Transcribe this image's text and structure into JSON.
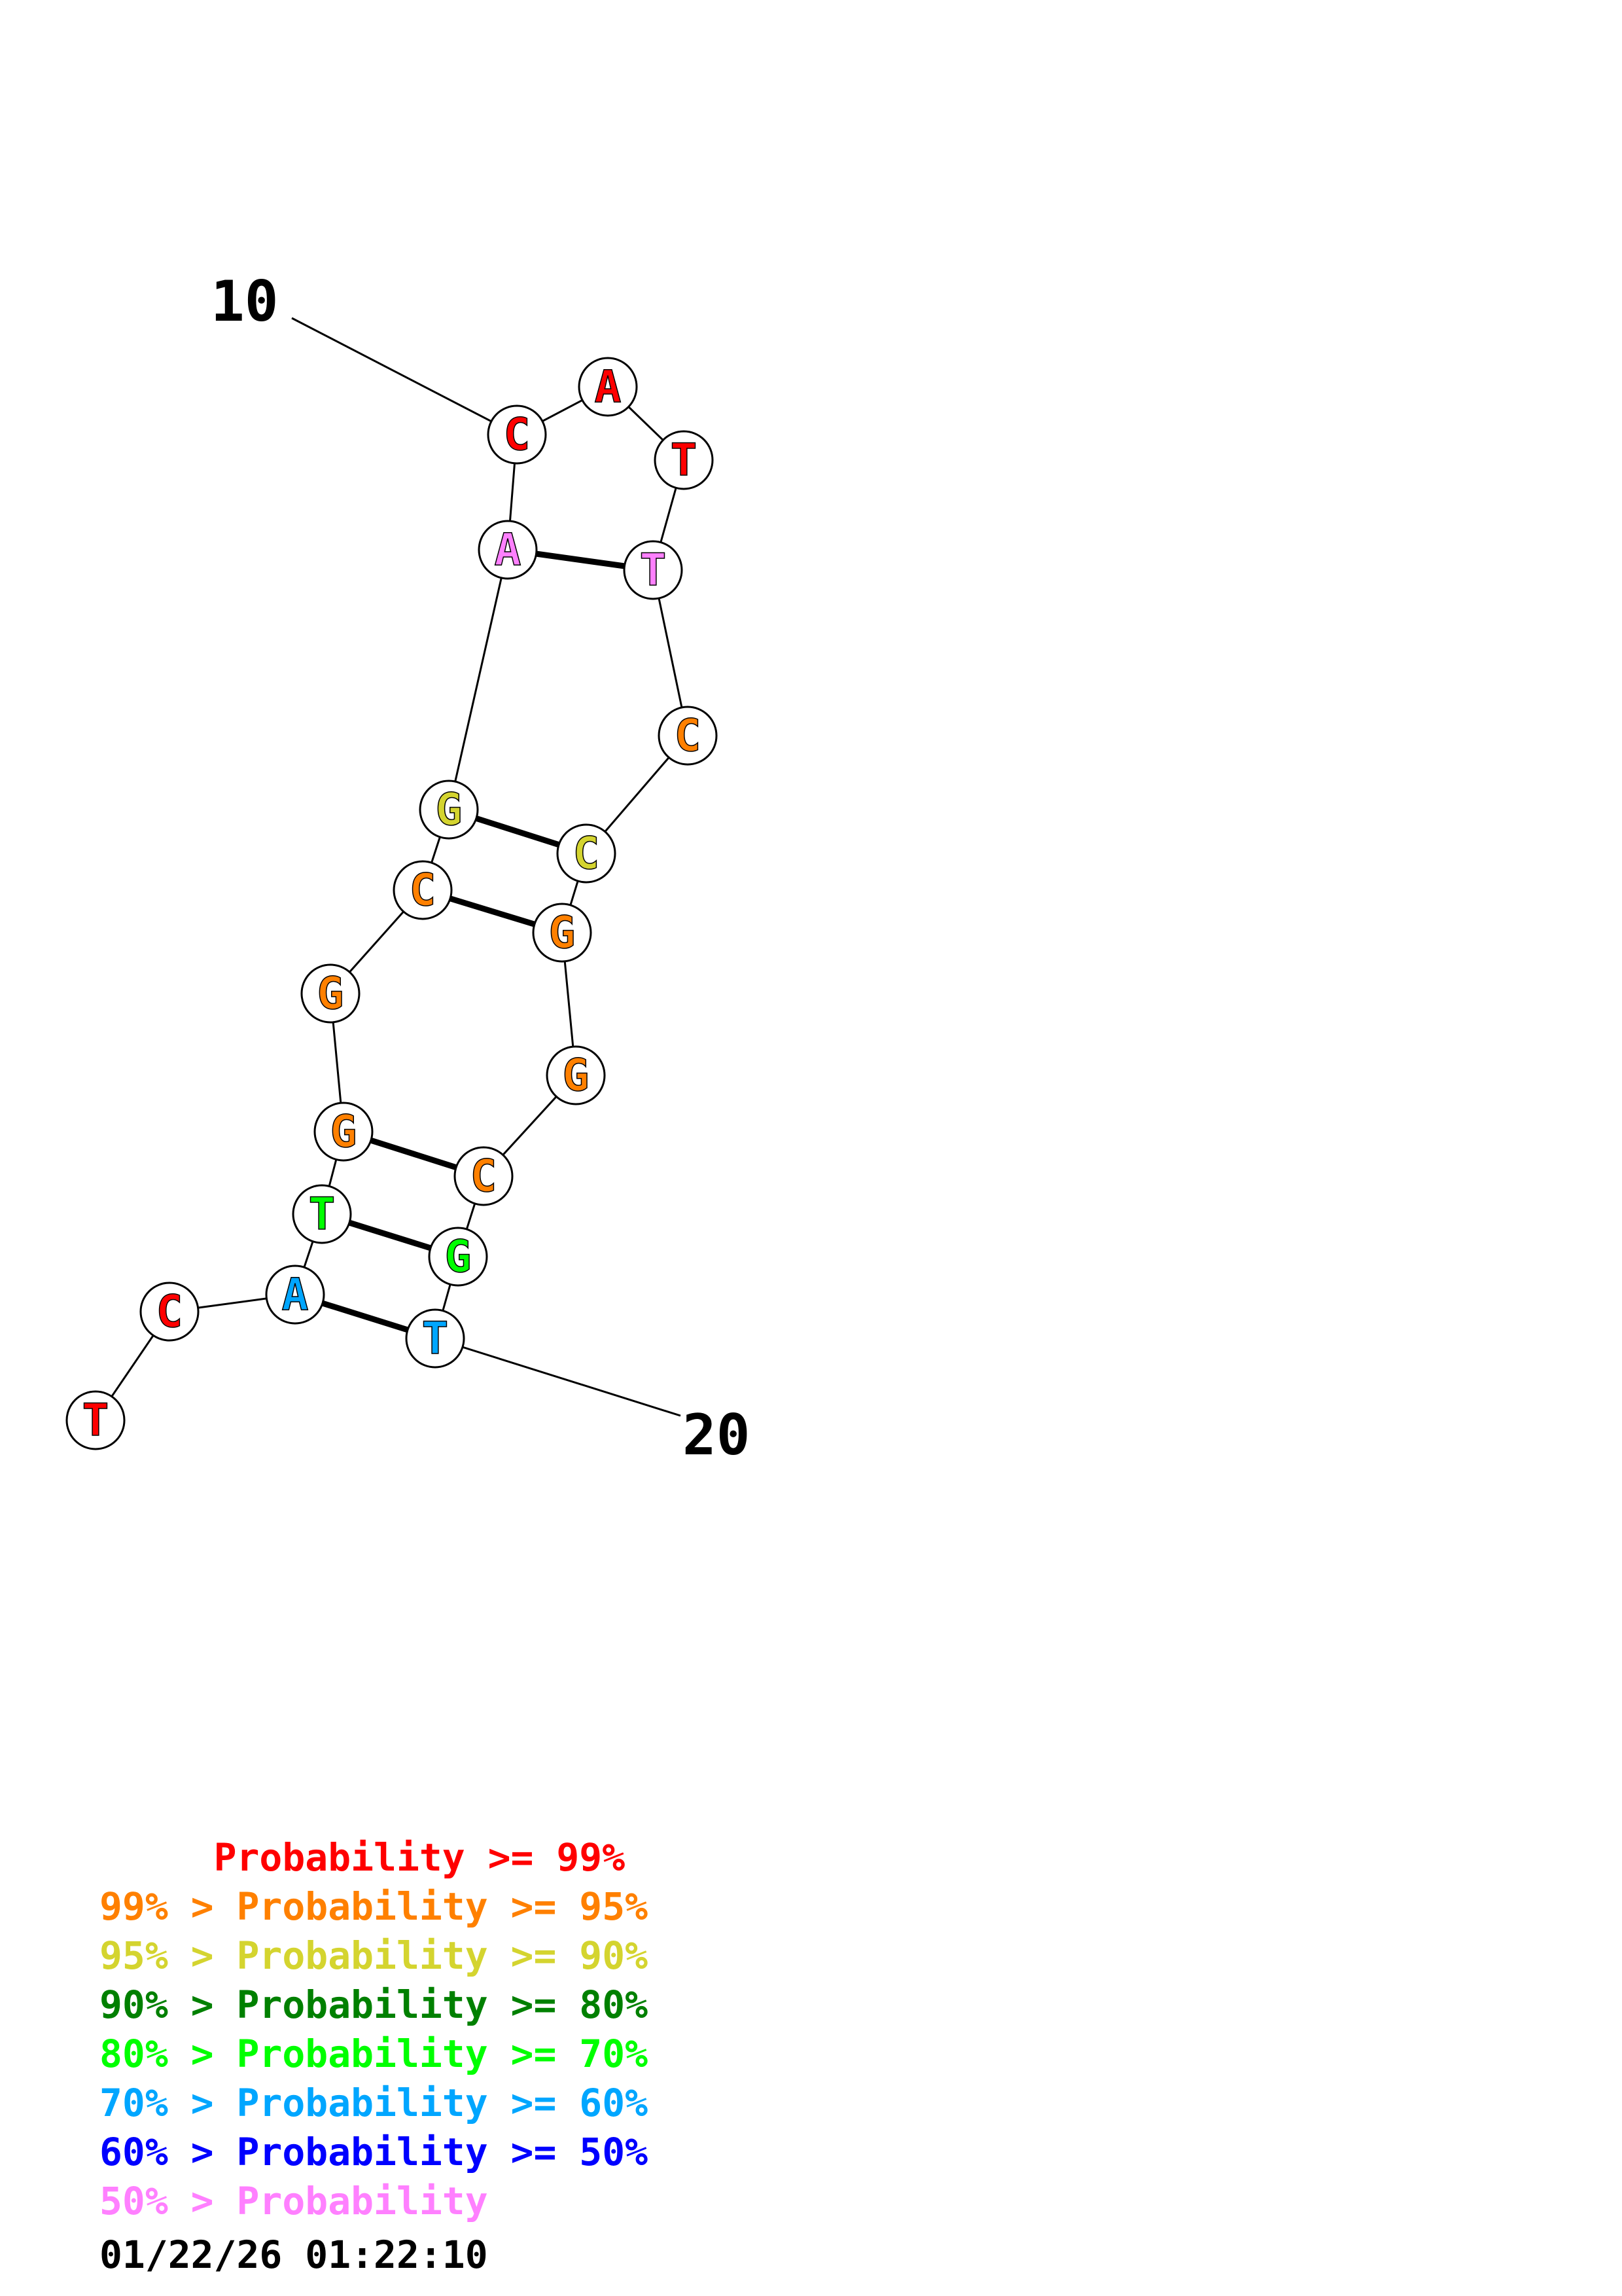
{
  "nucleotides": [
    {
      "id": 1,
      "base": "T",
      "color": "#ff0000"
    },
    {
      "id": 2,
      "base": "C",
      "color": "#ff0000"
    },
    {
      "id": 3,
      "base": "A",
      "color": "#00a6ff"
    },
    {
      "id": 4,
      "base": "T",
      "color": "#00ff00"
    },
    {
      "id": 5,
      "base": "G",
      "color": "#ff8000"
    },
    {
      "id": 6,
      "base": "G",
      "color": "#ff8000"
    },
    {
      "id": 7,
      "base": "C",
      "color": "#ff8000"
    },
    {
      "id": 8,
      "base": "G",
      "color": "#d4d42f"
    },
    {
      "id": 9,
      "base": "A",
      "color": "#ff80ff"
    },
    {
      "id": 10,
      "base": "C",
      "color": "#ff0000"
    },
    {
      "id": 11,
      "base": "A",
      "color": "#ff0000"
    },
    {
      "id": 12,
      "base": "T",
      "color": "#ff0000"
    },
    {
      "id": 13,
      "base": "T",
      "color": "#ff80ff"
    },
    {
      "id": 14,
      "base": "C",
      "color": "#ff8000"
    },
    {
      "id": 15,
      "base": "C",
      "color": "#d4d42f"
    },
    {
      "id": 16,
      "base": "G",
      "color": "#ff8000"
    },
    {
      "id": 17,
      "base": "G",
      "color": "#ff8000"
    },
    {
      "id": 18,
      "base": "C",
      "color": "#ff8000"
    },
    {
      "id": 19,
      "base": "G",
      "color": "#00ff00"
    },
    {
      "id": 20,
      "base": "T",
      "color": "#00a6ff"
    }
  ],
  "base_pairs": [
    [
      3,
      20
    ],
    [
      4,
      19
    ],
    [
      5,
      18
    ],
    [
      7,
      16
    ],
    [
      8,
      15
    ],
    [
      9,
      13
    ]
  ],
  "index_labels": [
    {
      "text": "10",
      "nucleotide": 10
    },
    {
      "text": "20",
      "nucleotide": 20
    }
  ],
  "legend": [
    {
      "text": "     Probability >= 99%",
      "color": "#ff0000"
    },
    {
      "text": "99% > Probability >= 95%",
      "color": "#ff8000"
    },
    {
      "text": "95% > Probability >= 90%",
      "color": "#d4d42f"
    },
    {
      "text": "90% > Probability >= 80%",
      "color": "#008000"
    },
    {
      "text": "80% > Probability >= 70%",
      "color": "#00ff00"
    },
    {
      "text": "70% > Probability >= 60%",
      "color": "#00a6ff"
    },
    {
      "text": "60% > Probability >= 50%",
      "color": "#0000ff"
    },
    {
      "text": "50% > Probability",
      "color": "#ff80ff"
    }
  ],
  "timestamp": "01/22/26 01:22:10"
}
